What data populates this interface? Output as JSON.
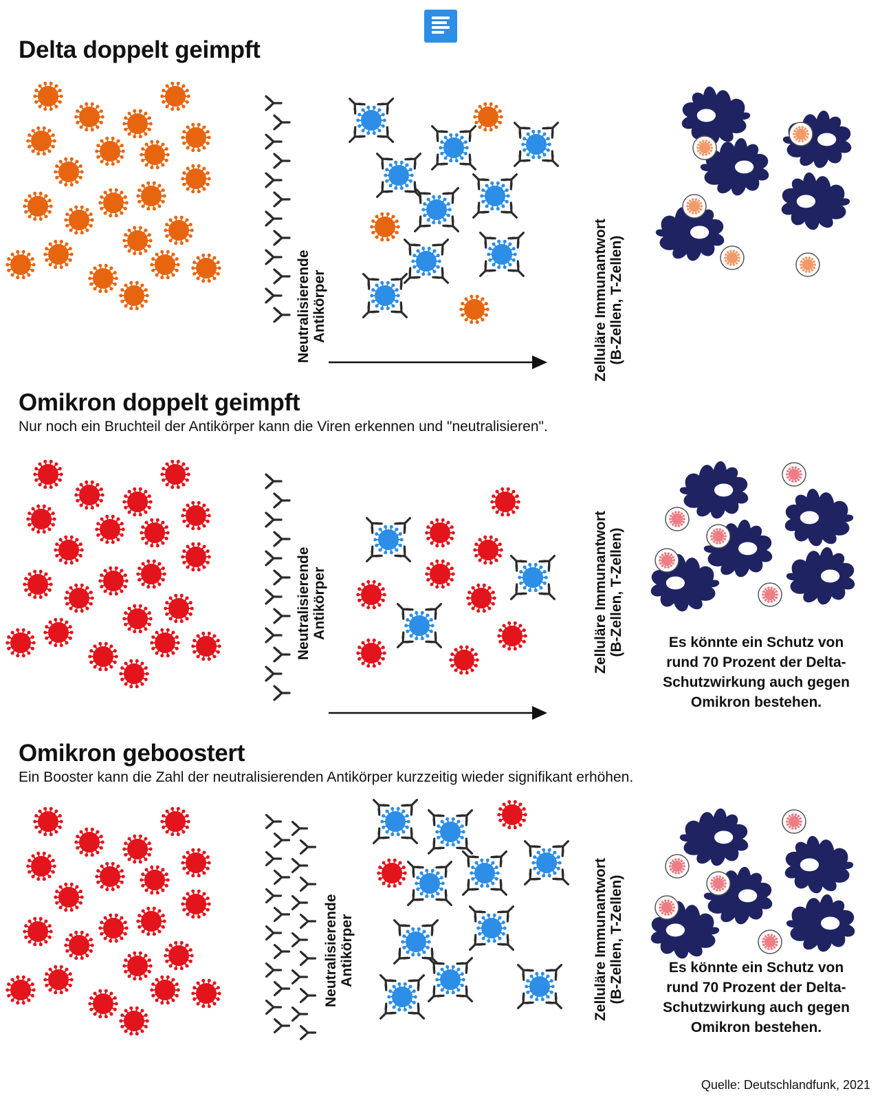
{
  "brand": {
    "logo_icon": "deutschlandfunk-logo-icon",
    "logo_color": "#2c8ee6"
  },
  "colors": {
    "delta_virus": "#e8650f",
    "omicron_virus": "#e3141c",
    "neutralized_virus": "#2c8ee6",
    "antibody": "#2b2b2b",
    "immune_cell": "#1f2361",
    "captured_delta": "#f29a6a",
    "captured_omicron": "#ee7e86"
  },
  "sections": [
    {
      "id": "delta",
      "title": "Delta doppelt geimpft",
      "subtitle": "",
      "antibody_label": [
        "Neutralisierende",
        "Antikörper"
      ],
      "cellular_label": [
        "Zelluläre Immunantwort",
        "(B-Zellen, T-Zellen)"
      ],
      "note": [],
      "virus_color_key": "delta_virus",
      "captured_color_key": "captured_delta"
    },
    {
      "id": "omicron",
      "title": "Omikron doppelt geimpft",
      "subtitle": "Nur noch ein Bruchteil der Antikörper kann die Viren erkennen und \"neutralisieren\".",
      "antibody_label": [
        "Neutralisierende",
        "Antikörper"
      ],
      "cellular_label": [
        "Zelluläre Immunantwort",
        "(B-Zellen, T-Zellen)"
      ],
      "note": [
        "Es könnte ein Schutz von",
        "rund 70 Prozent der Delta-",
        "Schutzwirkung auch gegen",
        "Omikron bestehen."
      ],
      "virus_color_key": "omicron_virus",
      "captured_color_key": "captured_omicron"
    },
    {
      "id": "booster",
      "title": "Omikron geboostert",
      "subtitle": "Ein Booster kann die Zahl der neutralisierenden Antikörper kurzzeitig wieder signifikant erhöhen.",
      "antibody_label": [
        "Neutralisierende",
        "Antikörper"
      ],
      "cellular_label": [
        "Zelluläre Immunantwort",
        "(B-Zellen, T-Zellen)"
      ],
      "note": [
        "Es könnte ein Schutz von",
        "rund 70 Prozent der Delta-",
        "Schutzwirkung auch gegen",
        "Omikron bestehen."
      ],
      "virus_color_key": "omicron_virus",
      "captured_color_key": "captured_omicron"
    }
  ],
  "source": "Quelle: Deutschlandfunk, 2021",
  "icons": [
    "virus-icon",
    "antibody-icon",
    "neutralized-virus-icon",
    "immune-cell-icon",
    "arrow-right-icon"
  ]
}
